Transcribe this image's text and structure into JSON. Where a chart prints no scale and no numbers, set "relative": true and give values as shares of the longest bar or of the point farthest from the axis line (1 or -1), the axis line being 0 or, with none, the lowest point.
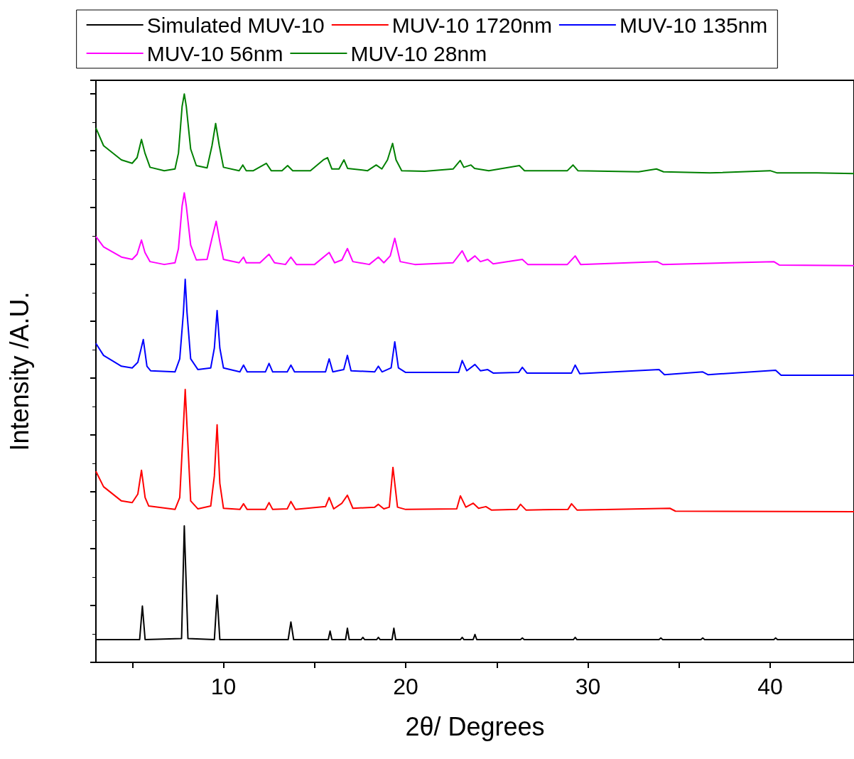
{
  "chart_data": {
    "type": "line",
    "relative": true,
    "xlabel": "2θ/ Degrees",
    "ylabel": "Intensity /A.U.",
    "xlim": [
      3,
      44.6
    ],
    "xticks": [
      {
        "value": 5,
        "label": null
      },
      10,
      {
        "value": 15,
        "label": null
      },
      20,
      {
        "value": 25,
        "label": null
      },
      30,
      {
        "value": 35,
        "label": null
      },
      40
    ],
    "legend": "top",
    "grid": false,
    "marker": "none",
    "line_style": "solid",
    "series": [
      {
        "name": "Simulated MUV-10",
        "color": "#000000",
        "x": [
          3.0,
          5.4,
          5.55,
          5.7,
          7.7,
          7.85,
          8.05,
          9.5,
          9.65,
          9.8,
          13.55,
          13.7,
          13.85,
          15.75,
          15.85,
          15.95,
          16.7,
          16.8,
          16.9,
          17.55,
          17.65,
          17.75,
          18.4,
          18.5,
          18.6,
          19.25,
          19.35,
          19.45,
          23.0,
          23.1,
          23.2,
          23.7,
          23.8,
          23.9,
          26.3,
          26.4,
          26.5,
          29.2,
          29.3,
          29.4,
          33.9,
          34.0,
          34.1,
          36.2,
          36.3,
          36.4,
          40.2,
          40.3,
          40.4,
          44.6
        ],
        "values": [
          0.04,
          0.04,
          0.099,
          0.04,
          0.042,
          0.24,
          0.042,
          0.04,
          0.118,
          0.04,
          0.04,
          0.071,
          0.04,
          0.04,
          0.055,
          0.04,
          0.04,
          0.06,
          0.04,
          0.04,
          0.044,
          0.04,
          0.04,
          0.044,
          0.04,
          0.04,
          0.06,
          0.04,
          0.04,
          0.044,
          0.04,
          0.04,
          0.049,
          0.04,
          0.04,
          0.043,
          0.04,
          0.04,
          0.044,
          0.04,
          0.04,
          0.043,
          0.04,
          0.04,
          0.043,
          0.04,
          0.04,
          0.043,
          0.04,
          0.04
        ]
      },
      {
        "name": "MUV-10 1720nm",
        "color": "#ff0000",
        "x": [
          3.0,
          3.42,
          4.4,
          4.99,
          5.3,
          5.5,
          5.7,
          5.9,
          7.34,
          7.6,
          7.8,
          7.9,
          8.0,
          8.2,
          8.6,
          9.3,
          9.5,
          9.65,
          9.8,
          10.0,
          10.9,
          11.1,
          11.3,
          12.3,
          12.5,
          12.7,
          13.5,
          13.7,
          13.95,
          15.6,
          15.8,
          16.05,
          16.5,
          16.8,
          17.1,
          18.3,
          18.5,
          18.8,
          19.1,
          19.3,
          19.55,
          20.0,
          22.8,
          23.0,
          23.3,
          23.7,
          24.0,
          24.4,
          24.7,
          26.1,
          26.3,
          26.6,
          28.9,
          29.1,
          29.4,
          34.5,
          34.8,
          44.6
        ],
        "values": [
          0.336,
          0.309,
          0.284,
          0.281,
          0.296,
          0.338,
          0.29,
          0.275,
          0.269,
          0.29,
          0.415,
          0.48,
          0.415,
          0.284,
          0.27,
          0.275,
          0.328,
          0.418,
          0.315,
          0.271,
          0.269,
          0.279,
          0.269,
          0.269,
          0.281,
          0.269,
          0.27,
          0.283,
          0.269,
          0.274,
          0.29,
          0.27,
          0.28,
          0.294,
          0.271,
          0.273,
          0.278,
          0.27,
          0.273,
          0.343,
          0.273,
          0.269,
          0.27,
          0.293,
          0.273,
          0.28,
          0.271,
          0.274,
          0.268,
          0.269,
          0.278,
          0.268,
          0.269,
          0.279,
          0.268,
          0.271,
          0.266,
          0.265
        ]
      },
      {
        "name": "MUV-10 135nm",
        "color": "#0000ff",
        "x": [
          3.0,
          3.42,
          4.4,
          4.99,
          5.3,
          5.6,
          5.8,
          6.0,
          7.34,
          7.6,
          7.8,
          7.9,
          8.0,
          8.2,
          8.6,
          9.3,
          9.5,
          9.65,
          9.8,
          10.0,
          10.9,
          11.1,
          11.3,
          12.3,
          12.5,
          12.7,
          13.5,
          13.7,
          13.9,
          15.6,
          15.8,
          16.0,
          16.6,
          16.8,
          17.0,
          18.3,
          18.5,
          18.7,
          19.2,
          19.4,
          19.6,
          20.0,
          22.9,
          23.1,
          23.35,
          23.8,
          24.1,
          24.5,
          24.8,
          26.2,
          26.4,
          26.65,
          29.1,
          29.3,
          29.55,
          33.9,
          34.2,
          36.3,
          36.6,
          40.3,
          40.6,
          44.6
        ],
        "values": [
          0.561,
          0.54,
          0.521,
          0.518,
          0.528,
          0.568,
          0.521,
          0.513,
          0.511,
          0.534,
          0.615,
          0.674,
          0.615,
          0.534,
          0.515,
          0.518,
          0.553,
          0.619,
          0.553,
          0.518,
          0.511,
          0.523,
          0.511,
          0.511,
          0.526,
          0.511,
          0.511,
          0.523,
          0.511,
          0.511,
          0.534,
          0.511,
          0.515,
          0.54,
          0.513,
          0.511,
          0.521,
          0.511,
          0.518,
          0.564,
          0.518,
          0.51,
          0.51,
          0.531,
          0.513,
          0.524,
          0.513,
          0.515,
          0.509,
          0.51,
          0.519,
          0.509,
          0.509,
          0.523,
          0.508,
          0.515,
          0.506,
          0.511,
          0.506,
          0.514,
          0.505,
          0.505
        ]
      },
      {
        "name": "MUV-10 56nm",
        "color": "#ff00ff",
        "x": [
          3.0,
          3.42,
          4.4,
          4.99,
          5.26,
          5.5,
          5.69,
          5.97,
          6.75,
          7.34,
          7.53,
          7.73,
          7.85,
          7.96,
          8.2,
          8.51,
          9.1,
          9.37,
          9.6,
          9.8,
          10.0,
          10.86,
          11.1,
          11.25,
          12.0,
          12.5,
          12.8,
          13.4,
          13.7,
          14.0,
          15.0,
          15.8,
          16.1,
          16.5,
          16.8,
          17.1,
          18.0,
          18.5,
          18.8,
          19.15,
          19.4,
          19.7,
          20.5,
          22.6,
          23.1,
          23.4,
          23.8,
          24.1,
          24.5,
          24.8,
          26.4,
          26.7,
          28.87,
          29.3,
          29.6,
          33.8,
          34.1,
          40.2,
          40.5,
          44.6
        ],
        "values": [
          0.749,
          0.731,
          0.713,
          0.709,
          0.718,
          0.743,
          0.721,
          0.705,
          0.7,
          0.703,
          0.728,
          0.803,
          0.826,
          0.803,
          0.734,
          0.708,
          0.709,
          0.746,
          0.776,
          0.74,
          0.709,
          0.703,
          0.713,
          0.703,
          0.703,
          0.718,
          0.703,
          0.7,
          0.713,
          0.7,
          0.7,
          0.721,
          0.703,
          0.708,
          0.728,
          0.705,
          0.7,
          0.713,
          0.703,
          0.715,
          0.746,
          0.705,
          0.7,
          0.703,
          0.724,
          0.705,
          0.715,
          0.705,
          0.709,
          0.701,
          0.709,
          0.7,
          0.7,
          0.715,
          0.7,
          0.705,
          0.7,
          0.705,
          0.699,
          0.698
        ]
      },
      {
        "name": "MUV-10 28nm",
        "color": "#008000",
        "x": [
          3.0,
          3.42,
          4.4,
          4.99,
          5.26,
          5.5,
          5.69,
          5.97,
          6.75,
          7.34,
          7.53,
          7.73,
          7.85,
          7.96,
          8.2,
          8.51,
          9.1,
          9.37,
          9.57,
          9.77,
          10.0,
          10.86,
          11.06,
          11.25,
          11.64,
          12.35,
          12.62,
          13.21,
          13.52,
          13.8,
          14.77,
          15.48,
          15.71,
          15.95,
          16.34,
          16.61,
          16.81,
          17.91,
          18.38,
          18.69,
          19.0,
          19.28,
          19.47,
          19.78,
          21.04,
          22.6,
          22.99,
          23.19,
          23.58,
          23.78,
          24.56,
          26.24,
          26.52,
          28.87,
          29.18,
          29.45,
          32.78,
          33.76,
          34.15,
          36.69,
          40.0,
          40.39,
          42.56,
          44.6
        ],
        "values": [
          0.94,
          0.909,
          0.884,
          0.878,
          0.888,
          0.92,
          0.896,
          0.871,
          0.865,
          0.868,
          0.896,
          0.978,
          1.0,
          0.978,
          0.903,
          0.874,
          0.87,
          0.909,
          0.948,
          0.909,
          0.871,
          0.865,
          0.875,
          0.865,
          0.865,
          0.878,
          0.865,
          0.865,
          0.874,
          0.865,
          0.865,
          0.884,
          0.888,
          0.868,
          0.868,
          0.884,
          0.869,
          0.865,
          0.875,
          0.868,
          0.884,
          0.913,
          0.884,
          0.865,
          0.864,
          0.868,
          0.883,
          0.871,
          0.875,
          0.869,
          0.865,
          0.874,
          0.865,
          0.865,
          0.875,
          0.865,
          0.863,
          0.868,
          0.863,
          0.861,
          0.865,
          0.861,
          0.861,
          0.86
        ]
      }
    ]
  }
}
